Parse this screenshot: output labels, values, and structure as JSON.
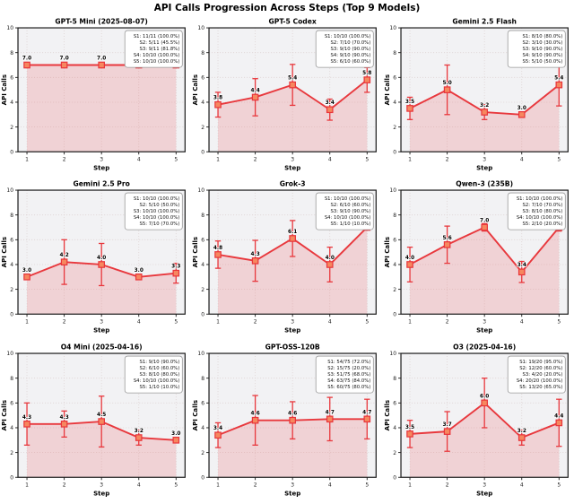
{
  "title": "API Calls Progression Across Steps (Top 9 Models)",
  "colors": {
    "line": "#e8383d",
    "marker_fill": "#f6875f",
    "marker_edge": "#e8343a",
    "area_fill": "#e8383d",
    "plot_bg": "#f2f2f4",
    "grid": "#ddd2d2",
    "legend_border": "#999999",
    "spine": "#1a1a1a",
    "label_text": "#000000"
  },
  "chart_data": [
    {
      "type": "line",
      "title": "GPT-5 Mini (2025-08-07)",
      "slug": "gpt5-mini",
      "x": [
        1,
        2,
        3,
        4,
        5
      ],
      "values": [
        7.0,
        7.0,
        7.0,
        7.0,
        7.0
      ],
      "errors": [
        0,
        0,
        0,
        0,
        0
      ],
      "point_labels": [
        "7.0",
        "7.0",
        "7.0",
        "7.0",
        "7.0"
      ],
      "legend": [
        "S1: 11/11 (100.0%)",
        "S2: 5/11 (45.5%)",
        "S3: 9/11 (81.8%)",
        "S4: 10/10 (100.0%)",
        "S5: 10/10 (100.0%)"
      ],
      "xlabel": "Step",
      "ylabel": "API Calls",
      "ylim": [
        0,
        10
      ],
      "yticks": [
        0,
        2,
        4,
        6,
        8,
        10
      ],
      "grid": true,
      "legend_position": "top-right"
    },
    {
      "type": "line",
      "title": "GPT-5 Codex",
      "slug": "gpt5-codex",
      "x": [
        1,
        2,
        3,
        4,
        5
      ],
      "values": [
        3.8,
        4.4,
        5.4,
        3.4,
        5.8
      ],
      "errors": [
        1.0,
        1.5,
        1.65,
        0.85,
        1.0
      ],
      "point_labels": [
        "3.8",
        "4.4",
        "5.4",
        "3.4",
        "5.8"
      ],
      "legend": [
        "S1: 10/10 (100.0%)",
        "S2: 7/10 (70.0%)",
        "S3: 9/10 (90.0%)",
        "S4: 9/10 (90.0%)",
        "S5: 6/10 (60.0%)"
      ],
      "xlabel": "Step",
      "ylabel": "API Calls",
      "ylim": [
        0,
        10
      ],
      "yticks": [
        0,
        2,
        4,
        6,
        8,
        10
      ],
      "grid": true,
      "legend_position": "top-right"
    },
    {
      "type": "line",
      "title": "Gemini 2.5 Flash",
      "slug": "gemini-25-flash",
      "x": [
        1,
        2,
        3,
        4,
        5
      ],
      "values": [
        3.5,
        5.0,
        3.2,
        3.0,
        5.4
      ],
      "errors": [
        0.9,
        2.0,
        0.6,
        0.15,
        1.7
      ],
      "point_labels": [
        "3.5",
        "5.0",
        "3.2",
        "3.0",
        "5.4"
      ],
      "legend": [
        "S1: 8/10 (80.0%)",
        "S2: 3/10 (30.0%)",
        "S3: 9/10 (90.0%)",
        "S4: 9/10 (90.0%)",
        "S5: 5/10 (50.0%)"
      ],
      "xlabel": "Step",
      "ylabel": "API Calls",
      "ylim": [
        0,
        10
      ],
      "yticks": [
        0,
        2,
        4,
        6,
        8,
        10
      ],
      "grid": true,
      "legend_position": "top-right"
    },
    {
      "type": "line",
      "title": "Gemini 2.5 Pro",
      "slug": "gemini-25-pro",
      "x": [
        1,
        2,
        3,
        4,
        5
      ],
      "values": [
        3.0,
        4.2,
        4.0,
        3.0,
        3.3
      ],
      "errors": [
        0.15,
        1.8,
        1.7,
        0.15,
        0.8
      ],
      "point_labels": [
        "3.0",
        "4.2",
        "4.0",
        "3.0",
        "3.3"
      ],
      "legend": [
        "S1: 10/10 (100.0%)",
        "S2: 5/10 (50.0%)",
        "S3: 10/10 (100.0%)",
        "S4: 10/10 (100.0%)",
        "S5: 7/10 (70.0%)"
      ],
      "xlabel": "Step",
      "ylabel": "API Calls",
      "ylim": [
        0,
        10
      ],
      "yticks": [
        0,
        2,
        4,
        6,
        8,
        10
      ],
      "grid": true,
      "legend_position": "top-right"
    },
    {
      "type": "line",
      "title": "Grok-3",
      "slug": "grok-3",
      "x": [
        1,
        2,
        3,
        4,
        5
      ],
      "values": [
        4.8,
        4.3,
        6.1,
        4.0,
        7.0
      ],
      "errors": [
        1.1,
        1.65,
        1.45,
        1.4,
        0.2
      ],
      "point_labels": [
        "4.8",
        "4.3",
        "6.1",
        "4.0",
        "7.0"
      ],
      "legend": [
        "S1: 10/10 (100.0%)",
        "S2: 6/10 (60.0%)",
        "S3: 9/10 (90.0%)",
        "S4: 10/10 (100.0%)",
        "S5: 1/10 (10.0%)"
      ],
      "xlabel": "Step",
      "ylabel": "API Calls",
      "ylim": [
        0,
        10
      ],
      "yticks": [
        0,
        2,
        4,
        6,
        8,
        10
      ],
      "grid": true,
      "legend_position": "top-right"
    },
    {
      "type": "line",
      "title": "Qwen-3 (235B)",
      "slug": "qwen-3-235b",
      "x": [
        1,
        2,
        3,
        4,
        5
      ],
      "values": [
        4.0,
        5.6,
        7.0,
        3.4,
        7.0
      ],
      "errors": [
        1.4,
        1.5,
        0.3,
        0.85,
        0.3
      ],
      "point_labels": [
        "4.0",
        "5.6",
        "7.0",
        "3.4",
        "7.0"
      ],
      "legend": [
        "S1: 10/10 (100.0%)",
        "S2: 7/10 (70.0%)",
        "S3: 8/10 (80.0%)",
        "S4: 10/10 (100.0%)",
        "S5: 2/10 (20.0%)"
      ],
      "xlabel": "Step",
      "ylabel": "API Calls",
      "ylim": [
        0,
        10
      ],
      "yticks": [
        0,
        2,
        4,
        6,
        8,
        10
      ],
      "grid": true,
      "legend_position": "top-right"
    },
    {
      "type": "line",
      "title": "O4 Mini (2025-04-16)",
      "slug": "o4-mini",
      "x": [
        1,
        2,
        3,
        4,
        5
      ],
      "values": [
        4.3,
        4.3,
        4.5,
        3.2,
        3.0
      ],
      "errors": [
        1.7,
        1.05,
        2.05,
        0.6,
        0.15
      ],
      "point_labels": [
        "4.3",
        "4.3",
        "4.5",
        "3.2",
        "3.0"
      ],
      "legend": [
        "S1: 9/10 (90.0%)",
        "S2: 6/10 (60.0%)",
        "S3: 8/10 (80.0%)",
        "S4: 10/10 (100.0%)",
        "S5: 1/10 (10.0%)"
      ],
      "xlabel": "Step",
      "ylabel": "API Calls",
      "ylim": [
        0,
        10
      ],
      "yticks": [
        0,
        2,
        4,
        6,
        8,
        10
      ],
      "grid": true,
      "legend_position": "top-right"
    },
    {
      "type": "line",
      "title": "GPT-OSS-120B",
      "slug": "gpt-oss-120b",
      "x": [
        1,
        2,
        3,
        4,
        5
      ],
      "values": [
        3.4,
        4.6,
        4.6,
        4.7,
        4.7
      ],
      "errors": [
        1.0,
        2.0,
        1.5,
        1.75,
        1.6
      ],
      "point_labels": [
        "3.4",
        "4.6",
        "4.6",
        "4.7",
        "4.7"
      ],
      "legend": [
        "S1: 54/75 (72.0%)",
        "S2: 15/75 (20.0%)",
        "S3: 51/75 (68.0%)",
        "S4: 63/75 (84.0%)",
        "S5: 60/75 (80.0%)"
      ],
      "xlabel": "Step",
      "ylabel": "API Calls",
      "ylim": [
        0,
        10
      ],
      "yticks": [
        0,
        2,
        4,
        6,
        8,
        10
      ],
      "grid": true,
      "legend_position": "top-right"
    },
    {
      "type": "line",
      "title": "O3 (2025-04-16)",
      "slug": "o3",
      "x": [
        1,
        2,
        3,
        4,
        5
      ],
      "values": [
        3.5,
        3.7,
        6.0,
        3.2,
        4.4
      ],
      "errors": [
        1.1,
        1.6,
        2.0,
        0.6,
        1.9
      ],
      "point_labels": [
        "3.5",
        "3.7",
        "6.0",
        "3.2",
        "4.4"
      ],
      "legend": [
        "S1: 19/20 (95.0%)",
        "S2: 12/20 (60.0%)",
        "S3: 4/20 (20.0%)",
        "S4: 20/20 (100.0%)",
        "S5: 13/20 (65.0%)"
      ],
      "xlabel": "Step",
      "ylabel": "API Calls",
      "ylim": [
        0,
        10
      ],
      "yticks": [
        0,
        2,
        4,
        6,
        8,
        10
      ],
      "grid": true,
      "legend_position": "top-right"
    }
  ]
}
